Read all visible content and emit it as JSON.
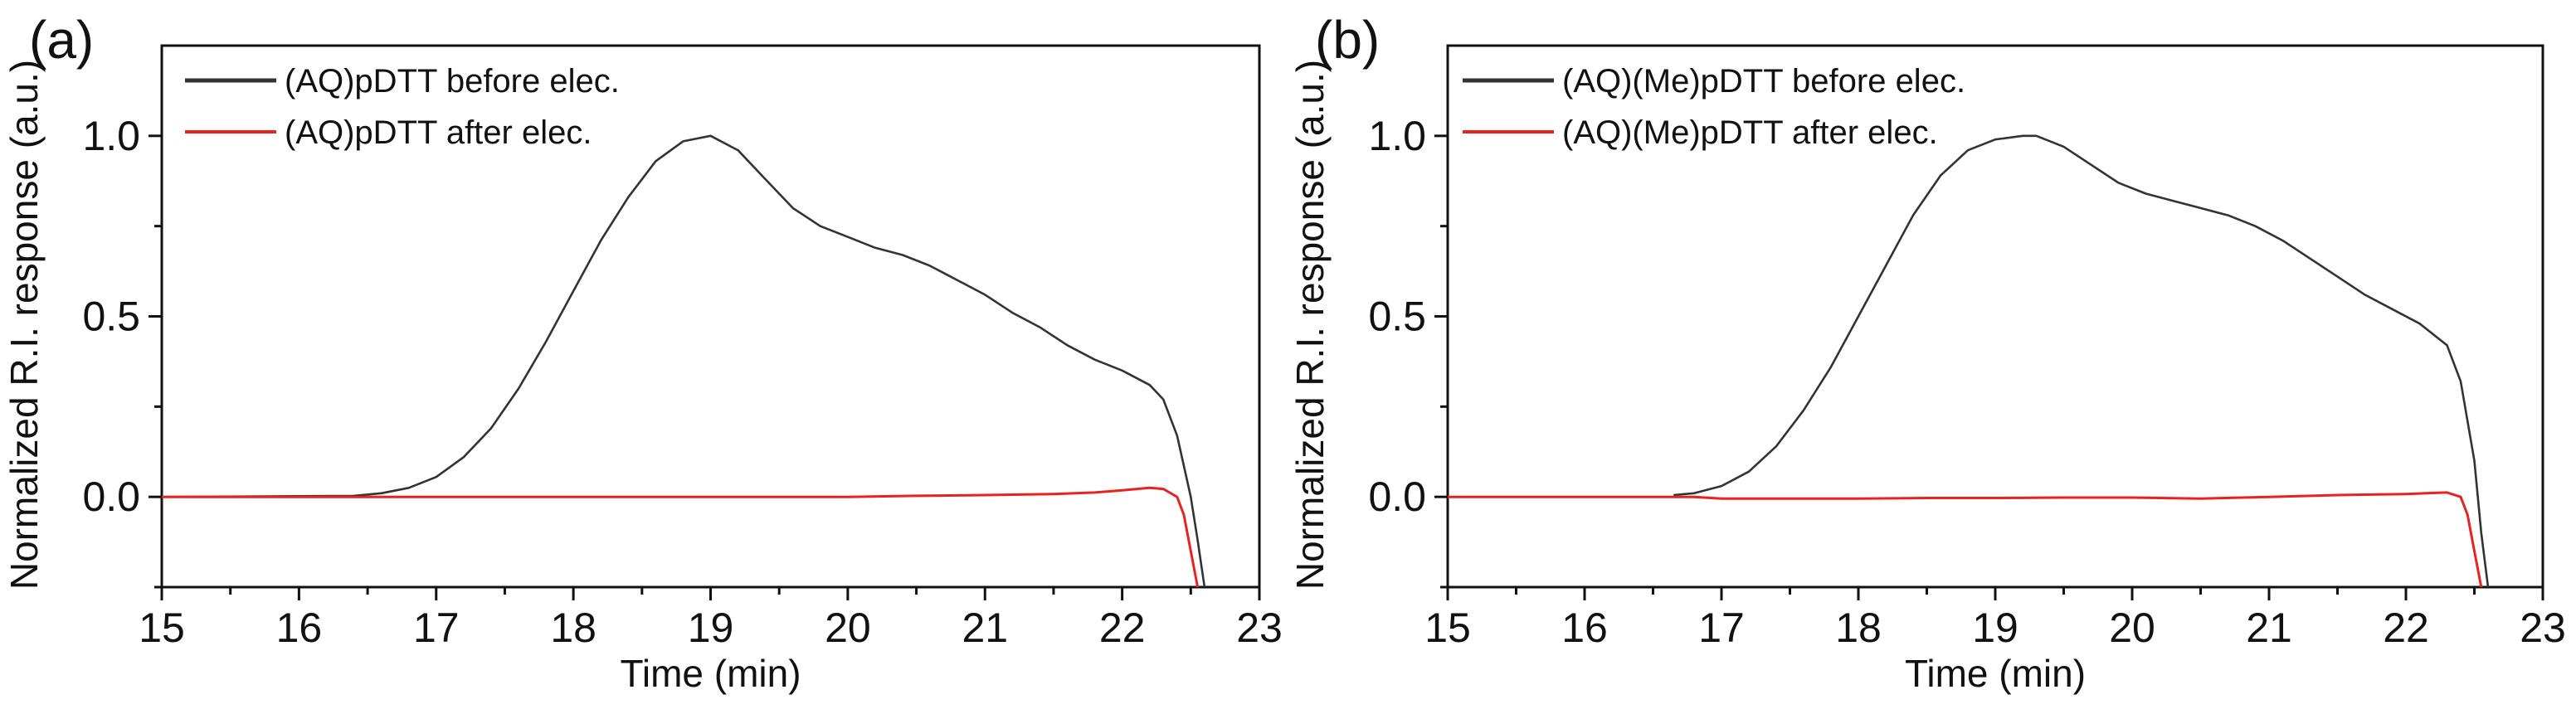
{
  "chart_data": [
    {
      "type": "line",
      "panel": "(a)",
      "xlabel": "Time (min)",
      "ylabel": "Normalized R.I. response (a.u.)",
      "xlim": [
        15,
        23
      ],
      "ylim": [
        -0.25,
        1.25
      ],
      "xticks": [
        15,
        16,
        17,
        18,
        19,
        20,
        21,
        22,
        23
      ],
      "yticks": [
        0.0,
        0.5,
        1.0
      ],
      "ytick_labels": [
        "0.0",
        "0.5",
        "1.0"
      ],
      "legend_position": "top-left",
      "series": [
        {
          "name": "(AQ)pDTT before elec.",
          "color": "#333333",
          "x": [
            15.0,
            16.4,
            16.6,
            16.8,
            17.0,
            17.2,
            17.4,
            17.6,
            17.8,
            18.0,
            18.2,
            18.4,
            18.6,
            18.8,
            19.0,
            19.2,
            19.4,
            19.6,
            19.8,
            20.0,
            20.2,
            20.4,
            20.6,
            20.8,
            21.0,
            21.2,
            21.4,
            21.6,
            21.8,
            22.0,
            22.2,
            22.3,
            22.4,
            22.5,
            22.55,
            22.6
          ],
          "y": [
            0.0,
            0.003,
            0.01,
            0.025,
            0.055,
            0.11,
            0.19,
            0.3,
            0.43,
            0.57,
            0.71,
            0.83,
            0.93,
            0.985,
            1.0,
            0.96,
            0.88,
            0.8,
            0.75,
            0.72,
            0.69,
            0.67,
            0.64,
            0.6,
            0.56,
            0.51,
            0.47,
            0.42,
            0.38,
            0.35,
            0.31,
            0.27,
            0.17,
            0.0,
            -0.12,
            -0.25
          ]
        },
        {
          "name": "(AQ)pDTT after elec.",
          "color": "#e8231f",
          "x": [
            15.0,
            17.0,
            18.0,
            19.0,
            20.0,
            20.5,
            21.0,
            21.5,
            21.8,
            22.0,
            22.2,
            22.3,
            22.4,
            22.45,
            22.5,
            22.55
          ],
          "y": [
            0.0,
            0.0,
            0.0,
            0.0,
            0.0,
            0.003,
            0.005,
            0.008,
            0.012,
            0.018,
            0.025,
            0.022,
            0.0,
            -0.05,
            -0.15,
            -0.25
          ]
        }
      ]
    },
    {
      "type": "line",
      "panel": "(b)",
      "xlabel": "Time (min)",
      "ylabel": "Normalized R.I. response (a.u.)",
      "xlim": [
        15,
        23
      ],
      "ylim": [
        -0.25,
        1.25
      ],
      "xticks": [
        15,
        16,
        17,
        18,
        19,
        20,
        21,
        22,
        23
      ],
      "yticks": [
        0.0,
        0.5,
        1.0
      ],
      "ytick_labels": [
        "0.0",
        "0.5",
        "1.0"
      ],
      "legend_position": "top-left",
      "series": [
        {
          "name": "(AQ)(Me)pDTT before elec.",
          "color": "#333333",
          "x": [
            16.65,
            16.8,
            17.0,
            17.2,
            17.4,
            17.6,
            17.8,
            18.0,
            18.2,
            18.4,
            18.6,
            18.8,
            19.0,
            19.2,
            19.3,
            19.5,
            19.7,
            19.9,
            20.1,
            20.3,
            20.5,
            20.7,
            20.9,
            21.1,
            21.3,
            21.5,
            21.7,
            21.9,
            22.1,
            22.3,
            22.4,
            22.5,
            22.55,
            22.6
          ],
          "y": [
            0.005,
            0.01,
            0.03,
            0.07,
            0.14,
            0.24,
            0.36,
            0.5,
            0.64,
            0.78,
            0.89,
            0.96,
            0.99,
            1.0,
            1.0,
            0.97,
            0.92,
            0.87,
            0.84,
            0.82,
            0.8,
            0.78,
            0.75,
            0.71,
            0.66,
            0.61,
            0.56,
            0.52,
            0.48,
            0.42,
            0.32,
            0.1,
            -0.1,
            -0.25
          ]
        },
        {
          "name": "(AQ)(Me)pDTT after elec.",
          "color": "#e8231f",
          "x": [
            15.0,
            16.8,
            17.0,
            17.5,
            18.0,
            18.5,
            19.0,
            19.5,
            20.0,
            20.5,
            21.0,
            21.5,
            22.0,
            22.3,
            22.4,
            22.45,
            22.5,
            22.55
          ],
          "y": [
            0.0,
            0.0,
            -0.005,
            -0.005,
            -0.005,
            -0.003,
            -0.003,
            -0.002,
            -0.002,
            -0.005,
            0.0,
            0.005,
            0.008,
            0.012,
            0.0,
            -0.05,
            -0.15,
            -0.25
          ]
        }
      ]
    }
  ]
}
